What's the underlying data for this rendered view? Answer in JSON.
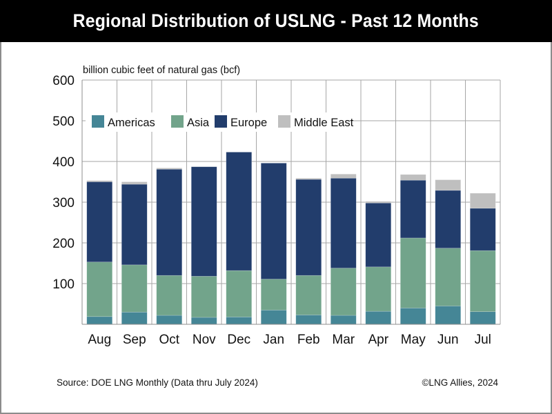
{
  "header": {
    "title": "Regional Distribution of USLNG - Past 12 Months"
  },
  "footer": {
    "source": "Source: DOE LNG Monthly (Data thru July 2024)",
    "copyright": "©LNG Allies, 2024"
  },
  "chart_data": {
    "type": "bar",
    "stacked": true,
    "title": "Regional Distribution of USLNG - Past 12 Months",
    "ylabel": "billion cubic feet of natural gas (bcf)",
    "xlabel": "",
    "ylim": [
      0,
      600
    ],
    "yticks": [
      100,
      200,
      300,
      400,
      500,
      600
    ],
    "grid": true,
    "legend_position": "top-left",
    "categories": [
      "Aug",
      "Sep",
      "Oct",
      "Nov",
      "Dec",
      "Jan",
      "Feb",
      "Mar",
      "Apr",
      "May",
      "Jun",
      "Jul"
    ],
    "series": [
      {
        "name": "Americas",
        "color": "#458696",
        "values": [
          19,
          30,
          22,
          17,
          18,
          35,
          23,
          22,
          32,
          40,
          45,
          31
        ]
      },
      {
        "name": "Asia",
        "color": "#72a48b",
        "values": [
          134,
          116,
          98,
          101,
          114,
          76,
          97,
          116,
          109,
          172,
          142,
          150
        ]
      },
      {
        "name": "Europe",
        "color": "#223d6c",
        "values": [
          197,
          198,
          261,
          269,
          291,
          285,
          236,
          221,
          157,
          142,
          142,
          104
        ]
      },
      {
        "name": "Middle East",
        "color": "#bfbfbf",
        "values": [
          3,
          6,
          3,
          0,
          0,
          0,
          3,
          10,
          4,
          14,
          26,
          37
        ]
      }
    ]
  }
}
